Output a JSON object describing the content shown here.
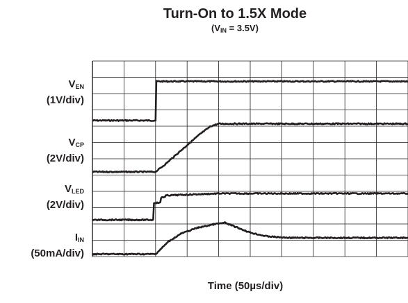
{
  "chart_data": {
    "type": "line",
    "title": "Turn-On to 1.5X Mode",
    "subtitle": {
      "prefix": "(V",
      "sub": "IN",
      "suffix": " = 3.5V)"
    },
    "xlabel": "Time (50µs/div)",
    "x_unit": "div",
    "xlim": [
      0,
      10
    ],
    "grid": true,
    "grid_divisions": {
      "x": 10,
      "y": 12
    },
    "series": [
      {
        "name": "EN",
        "label_main": "V",
        "label_sub": "EN",
        "scale": "(1V/div)",
        "x": [
          0,
          2.0,
          2.01,
          10
        ],
        "y": [
          0,
          0,
          2.4,
          2.4
        ],
        "baseline_div": 8.35
      },
      {
        "name": "CP",
        "label_main": "V",
        "label_sub": "CP",
        "scale": "(2V/div)",
        "x": [
          0,
          2.0,
          2.3,
          2.8,
          3.4,
          3.75,
          4.0,
          10
        ],
        "y": [
          0,
          0,
          0.45,
          1.3,
          2.3,
          2.8,
          2.95,
          2.95
        ],
        "baseline_div": 5.2
      },
      {
        "name": "LED",
        "label_main": "V",
        "label_sub": "LED",
        "scale": "(2V/div)",
        "x": [
          0,
          1.93,
          1.95,
          2.15,
          2.18,
          2.3,
          2.33,
          4.0,
          10
        ],
        "y": [
          0,
          0,
          1.05,
          1.05,
          1.4,
          1.4,
          1.5,
          1.62,
          1.62
        ],
        "baseline_div": 2.25
      },
      {
        "name": "IN",
        "label_main": "I",
        "label_sub": "IN",
        "scale": "(50mA/div)",
        "x": [
          0,
          2.0,
          2.4,
          2.8,
          3.3,
          3.9,
          4.2,
          4.6,
          5.0,
          5.5,
          6.0,
          6.4,
          10
        ],
        "y": [
          0,
          0,
          0.75,
          1.25,
          1.6,
          1.85,
          1.92,
          1.62,
          1.32,
          1.1,
          1.02,
          1.0,
          1.0
        ],
        "baseline_div": 0.15
      }
    ]
  }
}
